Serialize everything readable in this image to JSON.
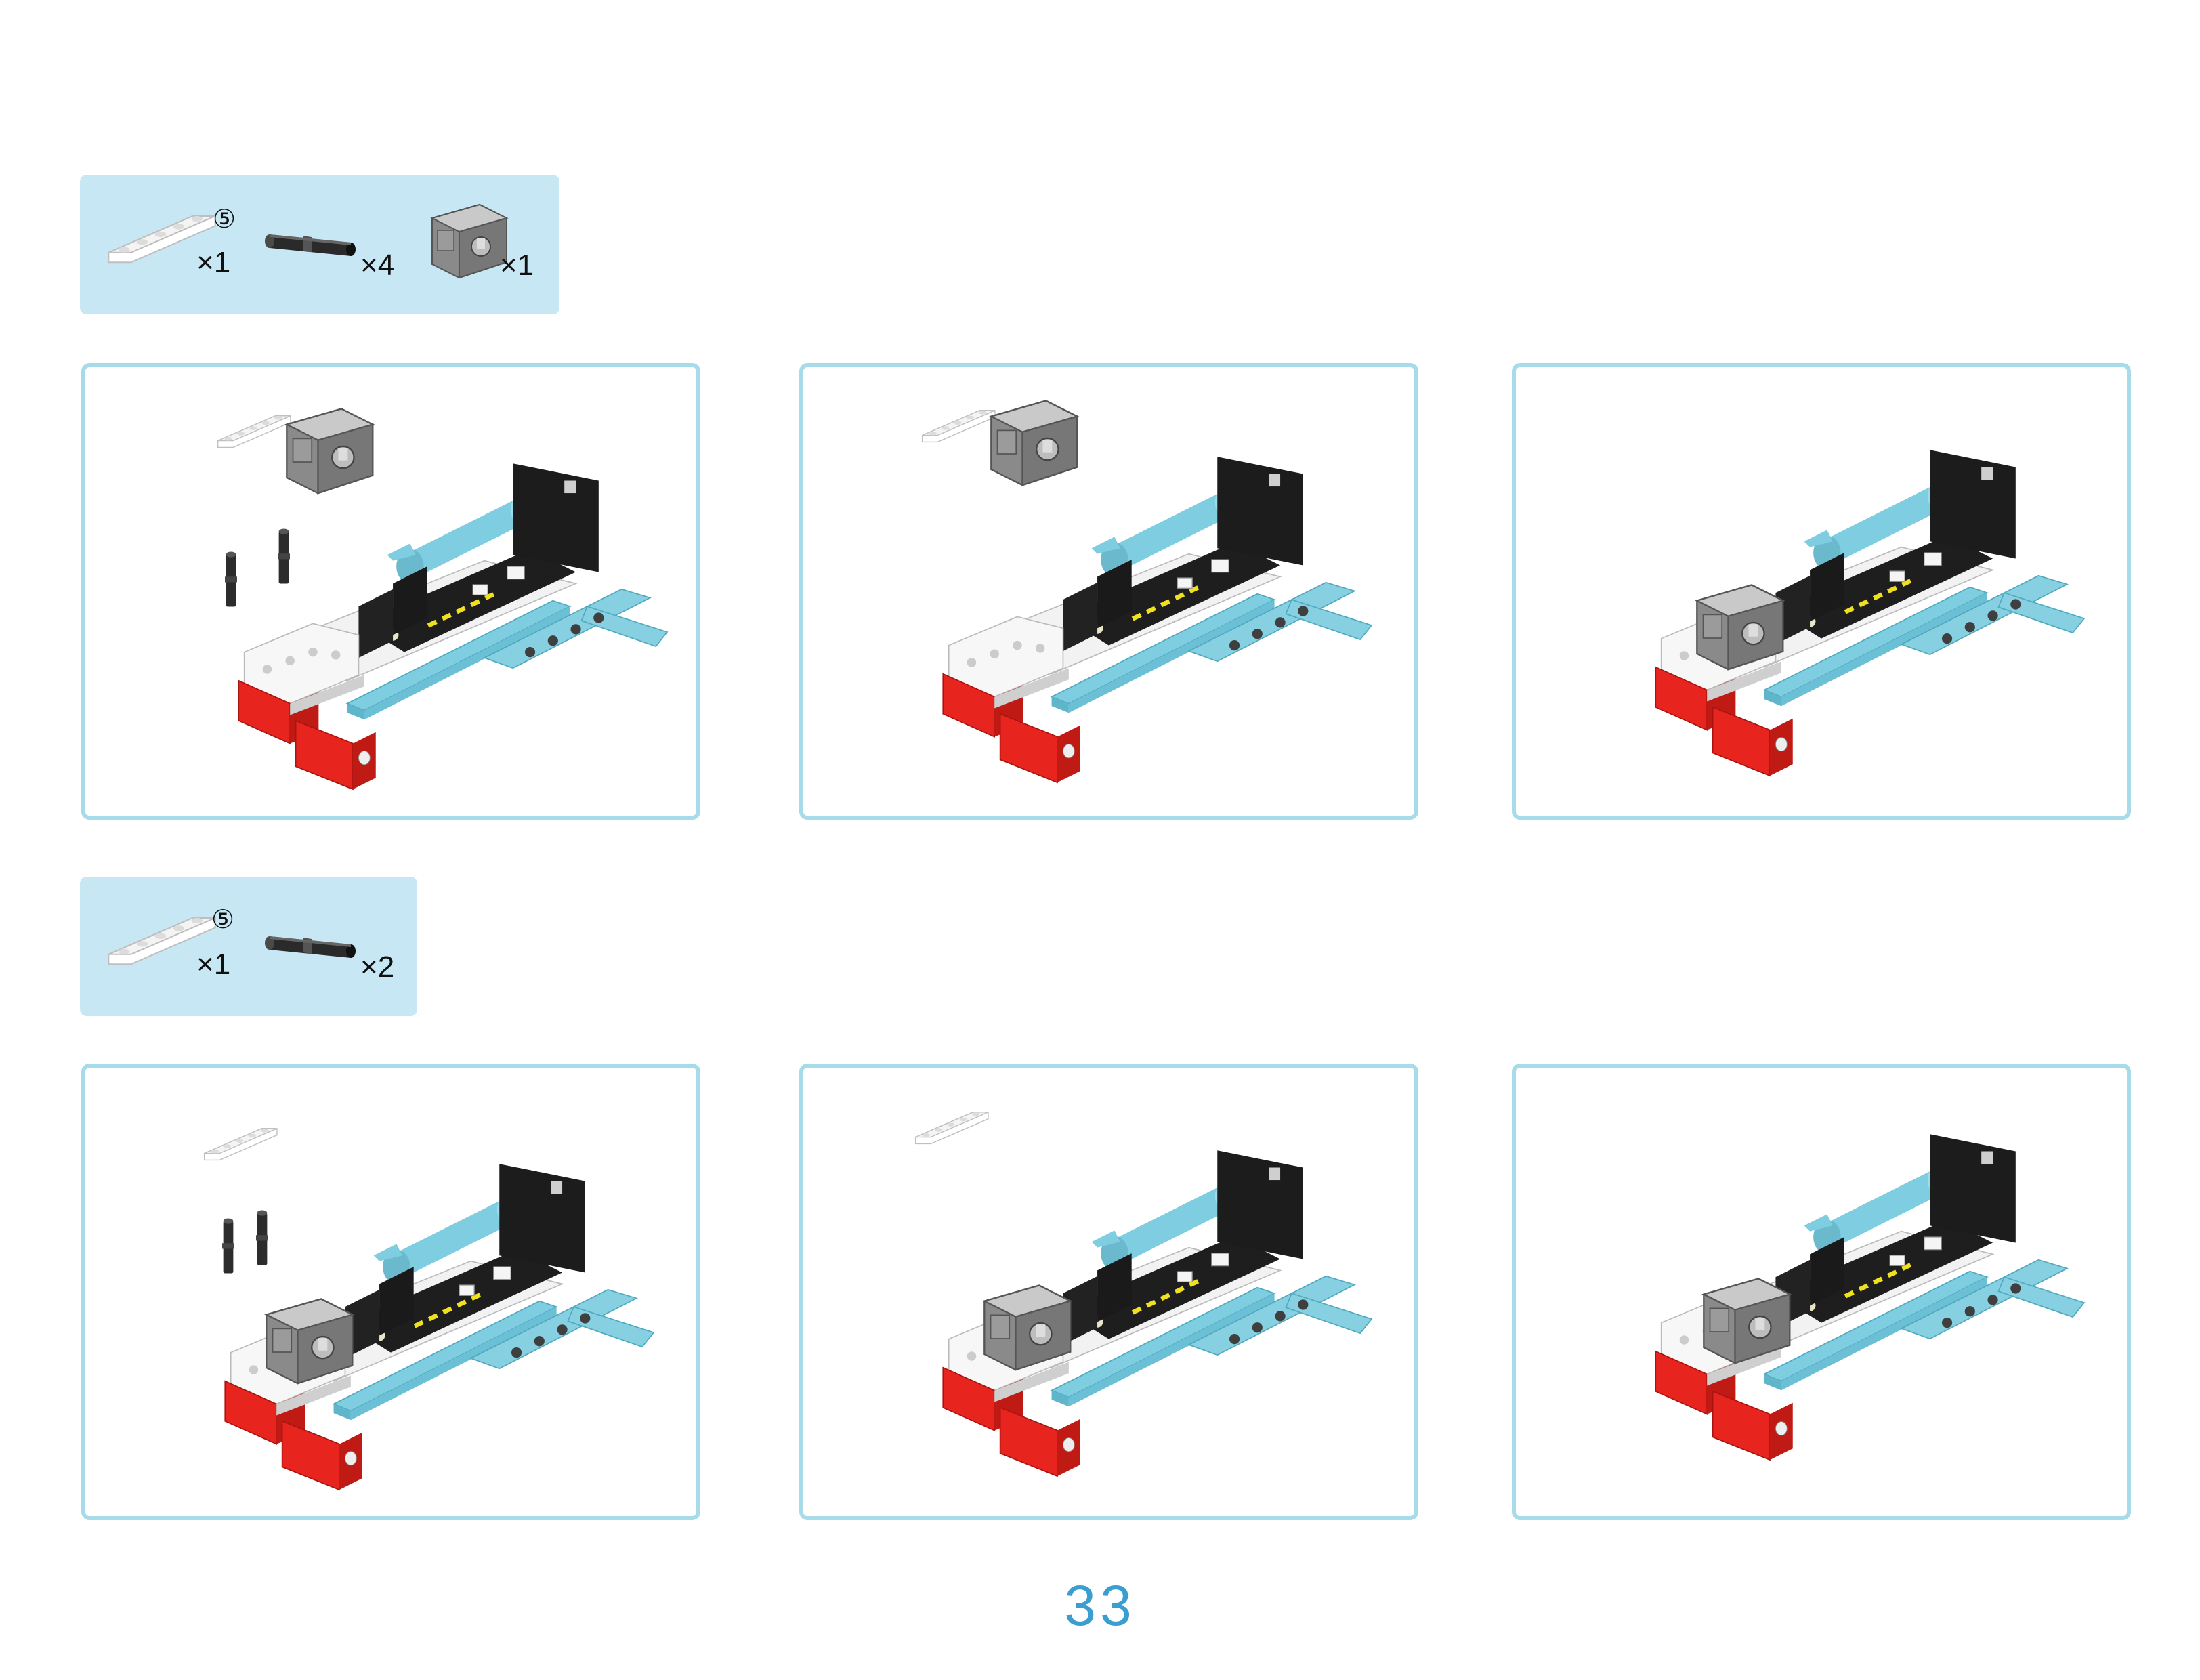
{
  "steps": [
    {
      "parts": [
        {
          "icon": "white-beam-5-icon",
          "circled": "⑤",
          "qty": "×1"
        },
        {
          "icon": "black-pin-icon",
          "qty": "×4"
        },
        {
          "icon": "servo-motor-icon",
          "qty": "×1"
        }
      ]
    },
    {
      "parts": [
        {
          "icon": "white-beam-5-icon",
          "circled": "⑤",
          "qty": "×1"
        },
        {
          "icon": "black-pin-icon",
          "qty": "×2"
        }
      ]
    }
  ],
  "colors": {
    "parts_bg": "#c8e7f4",
    "panel_border": "#a8dbea",
    "page_number": "#3a9fd0",
    "red": "#e8241f",
    "teal": "#79c9dc",
    "black": "#1c1c1c"
  },
  "page_number": "33"
}
